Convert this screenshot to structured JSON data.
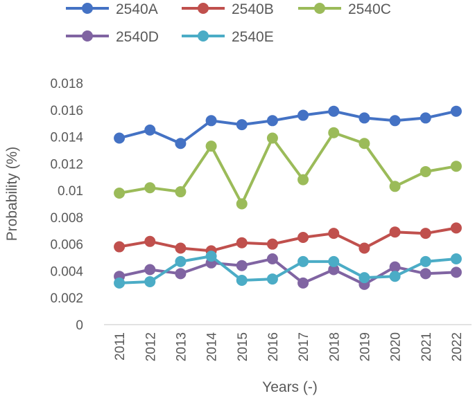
{
  "chart_data": {
    "type": "line",
    "title": "",
    "xlabel": "Years (-)",
    "ylabel": "Probability (%)",
    "ylim": [
      0,
      0.018
    ],
    "yticks": [
      "0",
      "0.002",
      "0.004",
      "0.006",
      "0.008",
      "0.01",
      "0.012",
      "0.014",
      "0.016",
      "0.018"
    ],
    "categories": [
      "2011",
      "2012",
      "2013",
      "2014",
      "2015",
      "2016",
      "2017",
      "2018",
      "2019",
      "2020",
      "2021",
      "2022"
    ],
    "legend_position": "top",
    "grid": false,
    "series": [
      {
        "name": "2540A",
        "color": "#4472C4",
        "values": [
          0.0139,
          0.0145,
          0.0135,
          0.0152,
          0.0149,
          0.0152,
          0.0156,
          0.0159,
          0.0154,
          0.0152,
          0.0154,
          0.0159
        ]
      },
      {
        "name": "2540B",
        "color": "#C0504D",
        "values": [
          0.0058,
          0.0062,
          0.0057,
          0.0055,
          0.0061,
          0.006,
          0.0065,
          0.0068,
          0.0057,
          0.0069,
          0.0068,
          0.0072
        ]
      },
      {
        "name": "2540C",
        "color": "#9BBB59",
        "values": [
          0.0098,
          0.0102,
          0.0099,
          0.0133,
          0.009,
          0.0139,
          0.0108,
          0.0143,
          0.0135,
          0.0103,
          0.0114,
          0.0118
        ]
      },
      {
        "name": "2540D",
        "color": "#8064A2",
        "values": [
          0.0036,
          0.0041,
          0.0038,
          0.0046,
          0.0044,
          0.0049,
          0.0031,
          0.0041,
          0.003,
          0.0043,
          0.0038,
          0.0039
        ]
      },
      {
        "name": "2540E",
        "color": "#4BACC6",
        "values": [
          0.0031,
          0.0032,
          0.0047,
          0.0051,
          0.0033,
          0.0034,
          0.0047,
          0.0047,
          0.0035,
          0.0036,
          0.0047,
          0.0049
        ]
      }
    ]
  }
}
